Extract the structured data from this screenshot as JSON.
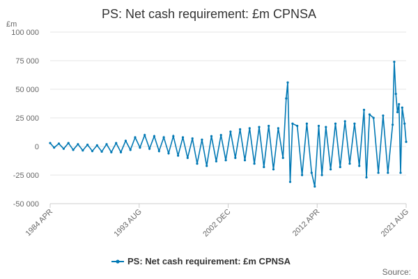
{
  "chart_data": {
    "type": "line",
    "title": "PS: Net cash requirement: £m CPNSA",
    "ylabel": "£m",
    "ylim": [
      -50000,
      100000
    ],
    "yticks": [
      -50000,
      -25000,
      0,
      25000,
      50000,
      75000,
      100000
    ],
    "ytick_labels": [
      "-50 000",
      "-25 000",
      "0",
      "25 000",
      "50 000",
      "75 000",
      "100 000"
    ],
    "xrange": [
      "1984-04",
      "2021-08"
    ],
    "xticks": [
      "1984-04",
      "1993-08",
      "2002-12",
      "2012-04",
      "2021-08"
    ],
    "xtick_labels": [
      "1984 APR",
      "1993 AUG",
      "2002 DEC",
      "2012 APR",
      "2021 AUG"
    ],
    "grid": true,
    "legend_position": "bottom",
    "source_label": "Source:",
    "series": [
      {
        "name": "PS: Net cash requirement: £m CPNSA",
        "color": "#0078b4",
        "points": [
          [
            "1984-04",
            3000
          ],
          [
            "1984-09",
            -1000
          ],
          [
            "1985-03",
            2500
          ],
          [
            "1985-09",
            -2000
          ],
          [
            "1986-03",
            3000
          ],
          [
            "1986-09",
            -3000
          ],
          [
            "1987-03",
            2000
          ],
          [
            "1987-09",
            -3500
          ],
          [
            "1988-03",
            1500
          ],
          [
            "1988-09",
            -4000
          ],
          [
            "1989-03",
            1000
          ],
          [
            "1989-09",
            -4500
          ],
          [
            "1990-03",
            2000
          ],
          [
            "1990-09",
            -5000
          ],
          [
            "1991-03",
            3000
          ],
          [
            "1991-09",
            -5000
          ],
          [
            "1992-03",
            5000
          ],
          [
            "1992-09",
            -3000
          ],
          [
            "1993-03",
            8000
          ],
          [
            "1993-09",
            -1000
          ],
          [
            "1994-03",
            10000
          ],
          [
            "1994-09",
            -2000
          ],
          [
            "1995-03",
            9000
          ],
          [
            "1995-09",
            -4000
          ],
          [
            "1996-03",
            8000
          ],
          [
            "1996-09",
            -6000
          ],
          [
            "1997-03",
            9000
          ],
          [
            "1997-09",
            -8000
          ],
          [
            "1998-03",
            8000
          ],
          [
            "1998-09",
            -10000
          ],
          [
            "1999-03",
            7000
          ],
          [
            "1999-09",
            -15000
          ],
          [
            "2000-03",
            6000
          ],
          [
            "2000-09",
            -17000
          ],
          [
            "2001-03",
            9000
          ],
          [
            "2001-09",
            -13000
          ],
          [
            "2002-03",
            10000
          ],
          [
            "2002-09",
            -12000
          ],
          [
            "2003-03",
            13000
          ],
          [
            "2003-09",
            -10000
          ],
          [
            "2004-03",
            15000
          ],
          [
            "2004-09",
            -12000
          ],
          [
            "2005-03",
            16000
          ],
          [
            "2005-09",
            -15000
          ],
          [
            "2006-03",
            17000
          ],
          [
            "2006-09",
            -18000
          ],
          [
            "2007-03",
            18000
          ],
          [
            "2007-09",
            -20000
          ],
          [
            "2008-03",
            16000
          ],
          [
            "2008-09",
            -10000
          ],
          [
            "2009-01",
            42000
          ],
          [
            "2009-03",
            56000
          ],
          [
            "2009-06",
            -31000
          ],
          [
            "2009-09",
            20000
          ],
          [
            "2010-03",
            18000
          ],
          [
            "2010-09",
            -25000
          ],
          [
            "2011-03",
            20000
          ],
          [
            "2011-09",
            -23000
          ],
          [
            "2012-01",
            -35000
          ],
          [
            "2012-06",
            18000
          ],
          [
            "2012-10",
            -25000
          ],
          [
            "2013-03",
            17000
          ],
          [
            "2013-09",
            -20000
          ],
          [
            "2014-03",
            20000
          ],
          [
            "2014-09",
            -18000
          ],
          [
            "2015-03",
            22000
          ],
          [
            "2015-09",
            -15000
          ],
          [
            "2016-03",
            20000
          ],
          [
            "2016-09",
            -17000
          ],
          [
            "2017-03",
            32000
          ],
          [
            "2017-06",
            -27000
          ],
          [
            "2017-10",
            28000
          ],
          [
            "2018-03",
            25000
          ],
          [
            "2018-09",
            -23000
          ],
          [
            "2019-03",
            27000
          ],
          [
            "2019-09",
            -23000
          ],
          [
            "2020-03",
            19000
          ],
          [
            "2020-05",
            74000
          ],
          [
            "2020-07",
            46000
          ],
          [
            "2020-09",
            30000
          ],
          [
            "2020-11",
            37000
          ],
          [
            "2021-01",
            -23000
          ],
          [
            "2021-03",
            34000
          ],
          [
            "2021-06",
            20000
          ],
          [
            "2021-08",
            4000
          ]
        ]
      }
    ]
  }
}
